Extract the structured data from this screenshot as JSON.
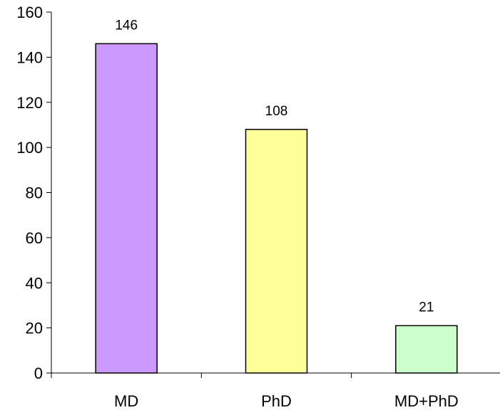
{
  "chart_data": {
    "type": "bar",
    "title": "",
    "xlabel": "",
    "ylabel": "",
    "categories": [
      "MD",
      "PhD",
      "MD+PhD"
    ],
    "values": [
      146,
      108,
      21
    ],
    "data_labels": [
      "146",
      "108",
      "21"
    ],
    "colors": [
      "#CC99FF",
      "#FFFF99",
      "#CCFFCC"
    ],
    "ylim": [
      0,
      160
    ],
    "yticks": [
      0,
      20,
      40,
      60,
      80,
      100,
      120,
      140,
      160
    ],
    "grid": false,
    "legend": "none"
  }
}
